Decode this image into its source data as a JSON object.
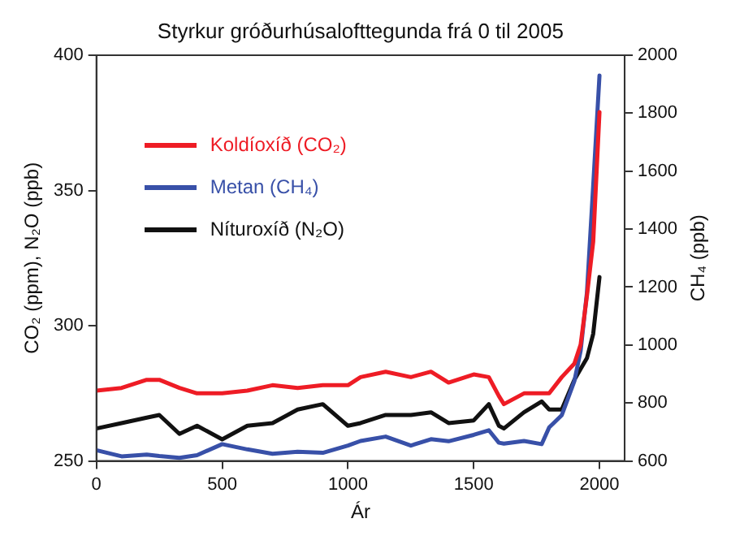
{
  "chart_data": {
    "type": "line",
    "title": "Styrkur gróðurhúsalofttegunda frá 0 til 2005",
    "xlabel": "Ár",
    "ylabel": "CO₂ (ppm), N₂O (ppb)",
    "y2label": "CH₄ (ppb)",
    "x": [
      0,
      100,
      200,
      250,
      330,
      400,
      500,
      600,
      700,
      800,
      900,
      1000,
      1050,
      1150,
      1250,
      1330,
      1400,
      1500,
      1560,
      1600,
      1620,
      1700,
      1770,
      1800,
      1850,
      1900,
      1925,
      1950,
      1975,
      2000
    ],
    "series": [
      {
        "name": "Koldíoxíð (CO₂)",
        "color": "#ee1c25",
        "values": [
          276,
          277,
          280,
          280,
          277,
          275,
          275,
          276,
          278,
          277,
          278,
          278,
          281,
          283,
          281,
          283,
          279,
          282,
          281,
          274,
          271,
          275,
          275,
          275,
          281,
          286,
          293,
          311,
          331,
          379
        ]
      },
      {
        "name": "Metan (CH₄)",
        "color": "#3850a8",
        "axis": "y2",
        "values": [
          637,
          616,
          622,
          617,
          611,
          620,
          658,
          640,
          625,
          632,
          628,
          653,
          669,
          684,
          653,
          675,
          668,
          690,
          706,
          663,
          660,
          669,
          658,
          716,
          758,
          875,
          980,
          1180,
          1550,
          1930
        ]
      },
      {
        "name": "Níturoxíð (N₂O)",
        "color": "#111111",
        "values": [
          262,
          264,
          266,
          267,
          260,
          263,
          258,
          263,
          264,
          269,
          271,
          263,
          264,
          267,
          267,
          268,
          264,
          265,
          271,
          263,
          262,
          268,
          272,
          269,
          269,
          280,
          284,
          288,
          297,
          318
        ]
      }
    ],
    "xlim": [
      0,
      2100
    ],
    "xticks": [
      0,
      500,
      1000,
      1500,
      2000
    ],
    "ylim": [
      250,
      400
    ],
    "yticks": [
      250,
      300,
      350,
      400
    ],
    "y2lim": [
      600,
      2000
    ],
    "y2ticks": [
      600,
      800,
      1000,
      1200,
      1400,
      1600,
      1800,
      2000
    ],
    "grid": false,
    "legend": "top left",
    "marker": "none",
    "line_style": "solid"
  }
}
